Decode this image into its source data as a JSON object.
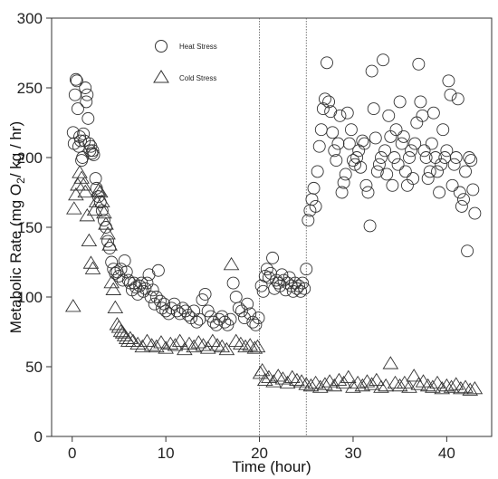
{
  "chart_data": {
    "type": "scatter",
    "title": "",
    "xlabel": "Time (hour)",
    "ylabel_parts": [
      "Metabolic  Rate (mg O",
      "2",
      "/ kg / hr)"
    ],
    "xlim": [
      -2.2,
      44.8
    ],
    "ylim": [
      0,
      300
    ],
    "x_ticks": [
      0,
      10,
      20,
      30,
      40
    ],
    "y_ticks": [
      0,
      50,
      100,
      150,
      200,
      250,
      300
    ],
    "vlines": [
      20,
      25
    ],
    "legend_position": "top-left",
    "series": [
      {
        "name": "Heat Stress",
        "marker": "circle",
        "points": [
          [
            0.1,
            218
          ],
          [
            0.2,
            210
          ],
          [
            0.3,
            245
          ],
          [
            0.4,
            256
          ],
          [
            0.5,
            255
          ],
          [
            0.6,
            235
          ],
          [
            0.7,
            208
          ],
          [
            0.8,
            215
          ],
          [
            0.9,
            212
          ],
          [
            1.0,
            198
          ],
          [
            1.1,
            200
          ],
          [
            1.2,
            217
          ],
          [
            1.3,
            212
          ],
          [
            1.4,
            250
          ],
          [
            1.5,
            240
          ],
          [
            1.6,
            245
          ],
          [
            1.7,
            228
          ],
          [
            1.8,
            210
          ],
          [
            1.9,
            205
          ],
          [
            2.0,
            208
          ],
          [
            2.1,
            203
          ],
          [
            2.2,
            205
          ],
          [
            2.3,
            202
          ],
          [
            2.5,
            185
          ],
          [
            2.6,
            178
          ],
          [
            2.8,
            172
          ],
          [
            3.0,
            168
          ],
          [
            3.2,
            162
          ],
          [
            3.4,
            155
          ],
          [
            3.6,
            150
          ],
          [
            3.8,
            140
          ],
          [
            4.0,
            135
          ],
          [
            4.2,
            125
          ],
          [
            4.4,
            120
          ],
          [
            4.6,
            117
          ],
          [
            4.8,
            118
          ],
          [
            5.0,
            115
          ],
          [
            5.2,
            120
          ],
          [
            5.4,
            112
          ],
          [
            5.6,
            126
          ],
          [
            5.8,
            118
          ],
          [
            6.0,
            112
          ],
          [
            6.2,
            110
          ],
          [
            6.4,
            105
          ],
          [
            6.6,
            110
          ],
          [
            6.8,
            107
          ],
          [
            7.0,
            102
          ],
          [
            7.2,
            108
          ],
          [
            7.4,
            110
          ],
          [
            7.6,
            104
          ],
          [
            7.8,
            106
          ],
          [
            8.0,
            110
          ],
          [
            8.2,
            116
          ],
          [
            8.4,
            100
          ],
          [
            8.6,
            105
          ],
          [
            8.8,
            95
          ],
          [
            9.0,
            100
          ],
          [
            9.2,
            119
          ],
          [
            9.4,
            97
          ],
          [
            9.6,
            92
          ],
          [
            9.8,
            95
          ],
          [
            10.0,
            90
          ],
          [
            10.3,
            88
          ],
          [
            10.6,
            92
          ],
          [
            10.9,
            95
          ],
          [
            11.2,
            90
          ],
          [
            11.5,
            88
          ],
          [
            11.8,
            92
          ],
          [
            12.1,
            90
          ],
          [
            12.4,
            87
          ],
          [
            12.7,
            85
          ],
          [
            13.0,
            90
          ],
          [
            13.3,
            82
          ],
          [
            13.6,
            84
          ],
          [
            13.9,
            98
          ],
          [
            14.2,
            102
          ],
          [
            14.5,
            90
          ],
          [
            14.8,
            86
          ],
          [
            15.1,
            82
          ],
          [
            15.4,
            80
          ],
          [
            15.7,
            84
          ],
          [
            16.0,
            86
          ],
          [
            16.3,
            82
          ],
          [
            16.6,
            80
          ],
          [
            16.9,
            84
          ],
          [
            17.2,
            110
          ],
          [
            17.5,
            100
          ],
          [
            17.8,
            92
          ],
          [
            18.1,
            90
          ],
          [
            18.4,
            85
          ],
          [
            18.7,
            95
          ],
          [
            19.0,
            88
          ],
          [
            19.3,
            82
          ],
          [
            19.6,
            80
          ],
          [
            19.9,
            85
          ],
          [
            20.2,
            108
          ],
          [
            20.4,
            104
          ],
          [
            20.6,
            115
          ],
          [
            20.8,
            120
          ],
          [
            21.0,
            114
          ],
          [
            21.2,
            117
          ],
          [
            21.4,
            128
          ],
          [
            21.6,
            106
          ],
          [
            21.8,
            112
          ],
          [
            22.0,
            110
          ],
          [
            22.2,
            108
          ],
          [
            22.4,
            116
          ],
          [
            22.6,
            112
          ],
          [
            22.8,
            105
          ],
          [
            23.0,
            110
          ],
          [
            23.2,
            114
          ],
          [
            23.4,
            108
          ],
          [
            23.6,
            104
          ],
          [
            23.8,
            110
          ],
          [
            24.0,
            106
          ],
          [
            24.2,
            108
          ],
          [
            24.4,
            104
          ],
          [
            24.6,
            110
          ],
          [
            24.8,
            106
          ],
          [
            25.0,
            120
          ],
          [
            25.2,
            155
          ],
          [
            25.4,
            162
          ],
          [
            25.6,
            170
          ],
          [
            25.8,
            178
          ],
          [
            26.0,
            165
          ],
          [
            26.2,
            190
          ],
          [
            26.4,
            208
          ],
          [
            26.6,
            220
          ],
          [
            26.8,
            235
          ],
          [
            27.0,
            242
          ],
          [
            27.2,
            268
          ],
          [
            27.4,
            240
          ],
          [
            27.6,
            233
          ],
          [
            27.8,
            218
          ],
          [
            28.0,
            205
          ],
          [
            28.2,
            198
          ],
          [
            28.4,
            210
          ],
          [
            28.6,
            230
          ],
          [
            28.8,
            175
          ],
          [
            29.0,
            182
          ],
          [
            29.2,
            188
          ],
          [
            29.4,
            232
          ],
          [
            29.6,
            210
          ],
          [
            29.8,
            220
          ],
          [
            30.0,
            198
          ],
          [
            30.2,
            195
          ],
          [
            30.4,
            200
          ],
          [
            30.6,
            205
          ],
          [
            30.8,
            193
          ],
          [
            31.0,
            212
          ],
          [
            31.2,
            210
          ],
          [
            31.4,
            180
          ],
          [
            31.6,
            175
          ],
          [
            31.8,
            151
          ],
          [
            32.0,
            262
          ],
          [
            32.2,
            235
          ],
          [
            32.4,
            214
          ],
          [
            32.6,
            190
          ],
          [
            32.8,
            195
          ],
          [
            33.0,
            200
          ],
          [
            33.2,
            270
          ],
          [
            33.4,
            205
          ],
          [
            33.6,
            188
          ],
          [
            33.8,
            230
          ],
          [
            34.0,
            215
          ],
          [
            34.2,
            180
          ],
          [
            34.4,
            200
          ],
          [
            34.6,
            220
          ],
          [
            34.8,
            195
          ],
          [
            35.0,
            240
          ],
          [
            35.2,
            210
          ],
          [
            35.4,
            215
          ],
          [
            35.6,
            190
          ],
          [
            35.8,
            180
          ],
          [
            36.0,
            200
          ],
          [
            36.2,
            205
          ],
          [
            36.4,
            185
          ],
          [
            36.6,
            210
          ],
          [
            36.8,
            225
          ],
          [
            37.0,
            267
          ],
          [
            37.2,
            240
          ],
          [
            37.4,
            230
          ],
          [
            37.6,
            205
          ],
          [
            37.8,
            200
          ],
          [
            38.0,
            185
          ],
          [
            38.2,
            190
          ],
          [
            38.4,
            210
          ],
          [
            38.6,
            232
          ],
          [
            38.8,
            200
          ],
          [
            39.0,
            190
          ],
          [
            39.2,
            175
          ],
          [
            39.4,
            195
          ],
          [
            39.6,
            220
          ],
          [
            39.8,
            200
          ],
          [
            40.0,
            205
          ],
          [
            40.2,
            255
          ],
          [
            40.4,
            245
          ],
          [
            40.6,
            180
          ],
          [
            40.8,
            195
          ],
          [
            41.0,
            200
          ],
          [
            41.2,
            242
          ],
          [
            41.4,
            175
          ],
          [
            41.6,
            165
          ],
          [
            41.8,
            170
          ],
          [
            42.0,
            190
          ],
          [
            42.2,
            133
          ],
          [
            42.4,
            200
          ],
          [
            42.6,
            198
          ],
          [
            42.8,
            177
          ],
          [
            43.0,
            160
          ]
        ]
      },
      {
        "name": "Cold Stress",
        "marker": "triangle",
        "points": [
          [
            0.1,
            93
          ],
          [
            0.2,
            163
          ],
          [
            0.4,
            173
          ],
          [
            0.6,
            180
          ],
          [
            0.8,
            189
          ],
          [
            1.0,
            185
          ],
          [
            1.2,
            180
          ],
          [
            1.4,
            175
          ],
          [
            1.6,
            158
          ],
          [
            1.8,
            140
          ],
          [
            2.0,
            124
          ],
          [
            2.2,
            120
          ],
          [
            2.4,
            162
          ],
          [
            2.6,
            168
          ],
          [
            2.8,
            176
          ],
          [
            3.0,
            175
          ],
          [
            3.2,
            168
          ],
          [
            3.4,
            160
          ],
          [
            3.6,
            152
          ],
          [
            3.8,
            145
          ],
          [
            4.0,
            137
          ],
          [
            4.2,
            110
          ],
          [
            4.4,
            105
          ],
          [
            4.6,
            92
          ],
          [
            4.8,
            80
          ],
          [
            5.0,
            78
          ],
          [
            5.2,
            75
          ],
          [
            5.4,
            74
          ],
          [
            5.6,
            72
          ],
          [
            5.8,
            70
          ],
          [
            6.0,
            68
          ],
          [
            6.2,
            70
          ],
          [
            6.5,
            68
          ],
          [
            7.0,
            66
          ],
          [
            7.5,
            64
          ],
          [
            8.0,
            68
          ],
          [
            8.5,
            65
          ],
          [
            9.0,
            64
          ],
          [
            9.5,
            67
          ],
          [
            10.0,
            63
          ],
          [
            10.5,
            66
          ],
          [
            11.0,
            65
          ],
          [
            11.5,
            68
          ],
          [
            12.0,
            62
          ],
          [
            12.5,
            66
          ],
          [
            13.0,
            64
          ],
          [
            13.5,
            67
          ],
          [
            14.0,
            65
          ],
          [
            14.5,
            63
          ],
          [
            15.0,
            68
          ],
          [
            15.5,
            65
          ],
          [
            16.0,
            64
          ],
          [
            16.5,
            62
          ],
          [
            17.0,
            123
          ],
          [
            17.5,
            68
          ],
          [
            18.0,
            66
          ],
          [
            18.5,
            64
          ],
          [
            19.0,
            65
          ],
          [
            19.5,
            63
          ],
          [
            19.8,
            64
          ],
          [
            20.1,
            45
          ],
          [
            20.3,
            47
          ],
          [
            20.6,
            40
          ],
          [
            21.0,
            42
          ],
          [
            21.5,
            39
          ],
          [
            22.0,
            43
          ],
          [
            22.5,
            41
          ],
          [
            23.0,
            38
          ],
          [
            23.5,
            42
          ],
          [
            24.0,
            40
          ],
          [
            24.5,
            39
          ],
          [
            25.0,
            37
          ],
          [
            25.5,
            36
          ],
          [
            26.0,
            38
          ],
          [
            26.5,
            35
          ],
          [
            27.0,
            37
          ],
          [
            27.5,
            39
          ],
          [
            28.0,
            36
          ],
          [
            28.5,
            40
          ],
          [
            29.0,
            38
          ],
          [
            29.5,
            42
          ],
          [
            30.0,
            35
          ],
          [
            30.5,
            38
          ],
          [
            31.0,
            36
          ],
          [
            31.5,
            39
          ],
          [
            32.0,
            37
          ],
          [
            32.5,
            40
          ],
          [
            33.0,
            35
          ],
          [
            33.5,
            36
          ],
          [
            34.0,
            52
          ],
          [
            34.5,
            38
          ],
          [
            35.0,
            36
          ],
          [
            35.5,
            38
          ],
          [
            36.0,
            35
          ],
          [
            36.5,
            43
          ],
          [
            37.0,
            37
          ],
          [
            37.5,
            39
          ],
          [
            38.0,
            36
          ],
          [
            38.5,
            35
          ],
          [
            39.0,
            38
          ],
          [
            39.5,
            34
          ],
          [
            40.0,
            36
          ],
          [
            40.5,
            35
          ],
          [
            41.0,
            37
          ],
          [
            41.5,
            34
          ],
          [
            42.0,
            35
          ],
          [
            42.5,
            33
          ],
          [
            43.0,
            34
          ]
        ]
      }
    ]
  }
}
